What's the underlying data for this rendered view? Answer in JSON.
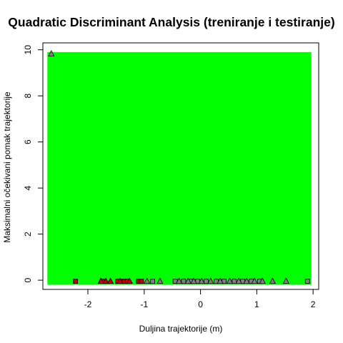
{
  "chart_data": {
    "type": "scatter",
    "title": "Quadratic Discriminant Analysis (treniranje i testiranje)",
    "xlabel": "Duljina trajektorije (m)",
    "ylabel": "Maksimalni očekivani pomak trajektorije",
    "xlim": [
      -2.8,
      2.1
    ],
    "ylim": [
      -0.4,
      10.3
    ],
    "xticks": [
      -2,
      -1,
      0,
      1,
      2
    ],
    "yticks": [
      0,
      2,
      4,
      6,
      8,
      10
    ],
    "grid": false,
    "region": {
      "class": "2",
      "color": "#00ff00",
      "x_range": [
        -2.72,
        1.97
      ],
      "y_range": [
        -0.2,
        9.9
      ]
    },
    "colors": {
      "region_fill": "#00ff00",
      "class1_point": "#cc0000",
      "class2_point": "#808080",
      "point_border": "#000000"
    },
    "series": [
      {
        "marker": "square",
        "color": "#cc0000",
        "x": [
          -2.22,
          -1.72,
          -1.47,
          -1.4,
          -1.35,
          -1.3,
          -1.1,
          -1.05
        ],
        "y": [
          -0.05,
          -0.05,
          -0.05,
          -0.05,
          -0.05,
          -0.05,
          -0.05,
          -0.05
        ]
      },
      {
        "marker": "triangle",
        "color": "#cc0000",
        "x": [
          -1.77,
          -1.68,
          -1.6,
          -1.43,
          -1.26
        ],
        "y": [
          -0.05,
          -0.05,
          -0.05,
          -0.05,
          -0.05
        ]
      },
      {
        "marker": "square",
        "color": "#808080",
        "x": [
          -0.85,
          -0.45,
          -0.3,
          -0.18,
          -0.05,
          0.1,
          0.28,
          0.42,
          0.6,
          0.75,
          0.9,
          1.05,
          1.9
        ],
        "y": [
          -0.05,
          -0.05,
          -0.05,
          -0.05,
          -0.05,
          -0.05,
          -0.05,
          -0.05,
          -0.05,
          -0.05,
          -0.05,
          -0.05,
          -0.05
        ]
      },
      {
        "marker": "triangle",
        "color": "#808080",
        "x": [
          -2.65,
          -0.95,
          -0.72,
          -0.38,
          -0.22,
          -0.12,
          0.02,
          0.18,
          0.35,
          0.52,
          0.68,
          0.82,
          0.96,
          1.1,
          1.28,
          1.52
        ],
        "y": [
          9.82,
          -0.05,
          -0.05,
          -0.05,
          -0.05,
          -0.05,
          -0.05,
          -0.05,
          -0.05,
          -0.05,
          -0.05,
          -0.05,
          -0.05,
          -0.05,
          -0.05,
          -0.05
        ]
      }
    ]
  }
}
